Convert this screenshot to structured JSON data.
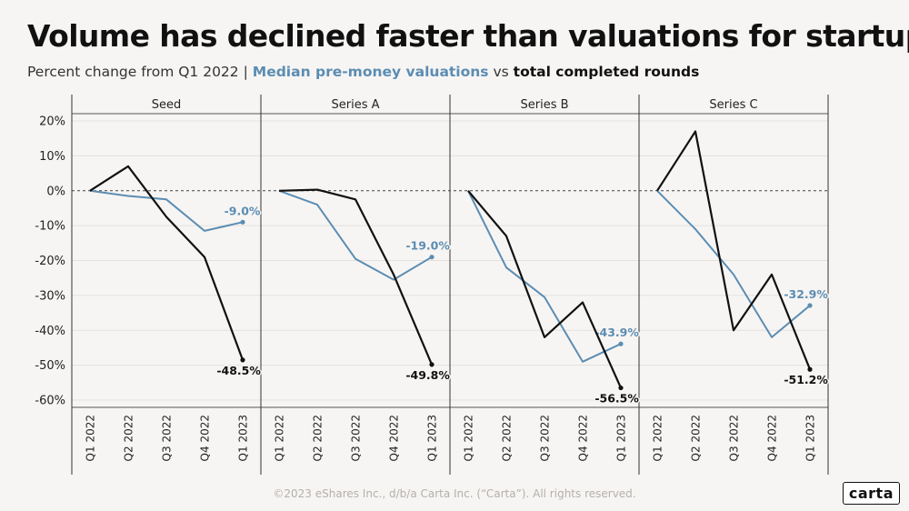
{
  "title": "Volume has declined faster than valuations for startups",
  "subtitle": {
    "prefix": "Percent change from Q1 2022",
    "separator": "|",
    "valuations_label": "Median pre-money valuations",
    "vs": "vs",
    "rounds_label": "total completed rounds"
  },
  "footer": "©2023 eShares Inc., d/b/a Carta Inc. (“Carta”). All rights reserved.",
  "logo": "carta",
  "colors": {
    "valuations": "#5b8db3",
    "rounds": "#111111"
  },
  "chart_data": {
    "type": "line",
    "categories": [
      "Q1 2022",
      "Q2 2022",
      "Q3 2022",
      "Q4 2022",
      "Q1 2023"
    ],
    "y_ticks": [
      "20%",
      "10%",
      "0%",
      "-10%",
      "-20%",
      "-30%",
      "-40%",
      "-50%",
      "-60%"
    ],
    "y_tick_values": [
      20,
      10,
      0,
      -10,
      -20,
      -30,
      -40,
      -50,
      -60
    ],
    "ylim": [
      -60,
      20
    ],
    "panels": [
      {
        "name": "Seed",
        "series": [
          {
            "name": "Median pre-money valuations",
            "values": [
              0,
              -1.5,
              -2.5,
              -11.5,
              -9.0
            ],
            "end_label": "-9.0%"
          },
          {
            "name": "total completed rounds",
            "values": [
              0,
              7,
              -7.5,
              -19,
              -48.5
            ],
            "end_label": "-48.5%"
          }
        ]
      },
      {
        "name": "Series A",
        "series": [
          {
            "name": "Median pre-money valuations",
            "values": [
              0,
              -4,
              -19.5,
              -25.5,
              -19.0
            ],
            "end_label": "-19.0%"
          },
          {
            "name": "total completed rounds",
            "values": [
              0,
              0.3,
              -2.5,
              -24,
              -49.8
            ],
            "end_label": "-49.8%"
          }
        ]
      },
      {
        "name": "Series B",
        "series": [
          {
            "name": "Median pre-money valuations",
            "values": [
              0,
              -22,
              -30.5,
              -49,
              -43.9
            ],
            "end_label": "-43.9%"
          },
          {
            "name": "total completed rounds",
            "values": [
              0,
              -13,
              -42,
              -32,
              -56.5
            ],
            "end_label": "-56.5%"
          }
        ]
      },
      {
        "name": "Series C",
        "series": [
          {
            "name": "Median pre-money valuations",
            "values": [
              0,
              -11,
              -24,
              -42,
              -32.9
            ],
            "end_label": "-32.9%"
          },
          {
            "name": "total completed rounds",
            "values": [
              0,
              17,
              -40,
              -24,
              -51.2
            ],
            "end_label": "-51.2%"
          }
        ]
      }
    ]
  }
}
